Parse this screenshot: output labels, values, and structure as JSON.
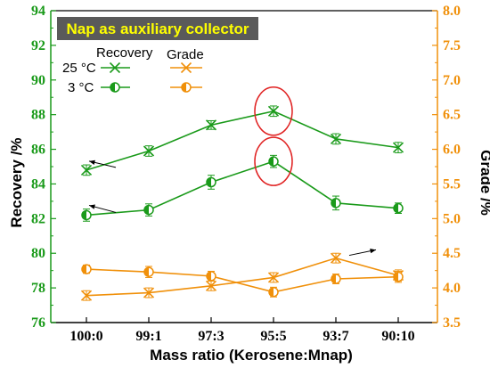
{
  "chart_data": {
    "type": "line",
    "title": "Nap as auxiliary collector",
    "xlabel": "Mass ratio (Kerosene:Mnap)",
    "ylabel": "Recovery /%",
    "y2label": "Grade /%",
    "categories": [
      "100:0",
      "99:1",
      "97:3",
      "95:5",
      "93:7",
      "90:10"
    ],
    "ylim": [
      76,
      94
    ],
    "y_ticks": [
      "76",
      "78",
      "80",
      "82",
      "84",
      "86",
      "88",
      "90",
      "92",
      "94"
    ],
    "y2lim": [
      3.5,
      8.0
    ],
    "y2_ticks": [
      "3.5",
      "4.0",
      "4.5",
      "5.0",
      "5.5",
      "6.0",
      "6.5",
      "7.0",
      "7.5",
      "8.0"
    ],
    "legend": {
      "header_recovery": "Recovery",
      "header_grade": "Grade",
      "row1_label": "25 °C",
      "row2_label": "3 °C"
    },
    "series": [
      {
        "axis": "left",
        "metric": "recovery",
        "temp": "25 °C",
        "marker": "x",
        "color": "#1a9a1a",
        "values": [
          84.8,
          85.9,
          87.4,
          88.2,
          86.6,
          86.1
        ],
        "err": [
          0.3,
          0.3,
          0.25,
          0.3,
          0.3,
          0.3
        ]
      },
      {
        "axis": "left",
        "metric": "recovery",
        "temp": "3 °C",
        "marker": "half-circle",
        "color": "#1a9a1a",
        "values": [
          82.2,
          82.5,
          84.1,
          85.3,
          82.9,
          82.6
        ],
        "err": [
          0.35,
          0.35,
          0.4,
          0.35,
          0.4,
          0.3
        ]
      },
      {
        "axis": "right",
        "metric": "grade",
        "temp": "25 °C",
        "marker": "x",
        "color": "#f0900a",
        "values": [
          3.89,
          3.93,
          4.03,
          4.15,
          4.43,
          4.18
        ],
        "err": [
          0.07,
          0.07,
          0.07,
          0.07,
          0.07,
          0.08
        ]
      },
      {
        "axis": "right",
        "metric": "grade",
        "temp": "3 °C",
        "marker": "half-circle",
        "color": "#f0900a",
        "values": [
          4.27,
          4.23,
          4.17,
          3.94,
          4.13,
          4.16
        ],
        "err": [
          0.06,
          0.08,
          0.07,
          0.07,
          0.07,
          0.08
        ]
      }
    ],
    "highlighted_category": "95:5",
    "colors": {
      "left_axis": "#1a9a1a",
      "right_axis": "#f0900a",
      "highlight": "#e02020",
      "title_bg": "#5a5a5a",
      "title_text": "#ffff00"
    }
  }
}
